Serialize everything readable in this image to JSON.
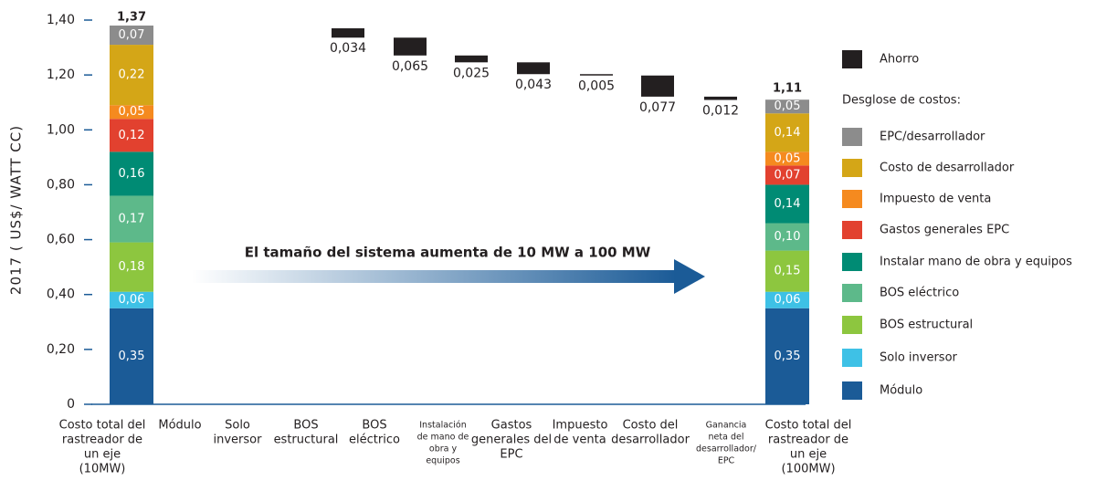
{
  "chart_data": {
    "type": "waterfall",
    "y_label": "2017 ( US$/ WATT CC)",
    "annotation": "El tamaño del sistema aumenta de 10 MW a 100 MW",
    "legend_subtitle": "Desglose de costos:",
    "ylim": [
      0,
      1.4
    ],
    "yticks": [
      0,
      {
        "value": 0.2,
        "label": "0,20"
      },
      {
        "value": 0.4,
        "label": "0,40"
      },
      {
        "value": 0.6,
        "label": "0,60"
      },
      {
        "value": 0.8,
        "label": "0,80"
      },
      {
        "value": 1.0,
        "label": "1,00"
      },
      {
        "value": 1.2,
        "label": "1,20"
      },
      {
        "value": 1.4,
        "label": "1,40"
      }
    ],
    "categories": [
      [
        "Costo total del",
        "rastreador de",
        "un eje",
        "(10MW)"
      ],
      [
        "Módulo"
      ],
      [
        "Solo",
        "inversor"
      ],
      [
        "BOS",
        "estructural"
      ],
      [
        "BOS",
        "eléctrico"
      ],
      [
        "Instalación",
        "de mano de",
        "obra y",
        "equipos"
      ],
      [
        "Gastos",
        "generales del",
        "EPC"
      ],
      [
        "Impuesto",
        "de venta"
      ],
      [
        "Costo del",
        "desarrollador"
      ],
      [
        "Ganancia",
        "neta del",
        "desarrollador/",
        "EPC"
      ],
      [
        "Costo total del",
        "rastreador de",
        "un eje",
        "(100MW)"
      ]
    ],
    "totals": [
      1.37,
      null,
      null,
      null,
      null,
      null,
      null,
      null,
      null,
      null,
      1.11
    ],
    "total_labels": [
      "1,37",
      null,
      null,
      null,
      null,
      null,
      null,
      null,
      null,
      null,
      "1,11"
    ],
    "savings": {
      "name": "Ahorro",
      "color": "#231f20",
      "values": [
        null,
        null,
        null,
        0.034,
        0.065,
        0.025,
        0.043,
        0.005,
        0.077,
        0.012,
        null
      ],
      "value_labels": [
        null,
        null,
        null,
        "0,034",
        "0,065",
        "0,025",
        "0,043",
        "0,005",
        "0,077",
        "0,012",
        null
      ]
    },
    "series": [
      {
        "name": "Módulo",
        "color": "#1b5b97",
        "values": [
          0.35,
          null,
          null,
          null,
          null,
          null,
          null,
          null,
          null,
          null,
          0.35
        ],
        "value_labels": [
          "0,35",
          null,
          null,
          null,
          null,
          null,
          null,
          null,
          null,
          null,
          "0,35"
        ]
      },
      {
        "name": "Solo inversor",
        "color": "#3ec1e6",
        "values": [
          0.06,
          null,
          null,
          null,
          null,
          null,
          null,
          null,
          null,
          null,
          0.06
        ],
        "value_labels": [
          "0,06",
          null,
          null,
          null,
          null,
          null,
          null,
          null,
          null,
          null,
          "0,06"
        ]
      },
      {
        "name": "BOS estructural",
        "color": "#8dc63f",
        "values": [
          0.18,
          null,
          null,
          null,
          null,
          null,
          null,
          null,
          null,
          null,
          0.15
        ],
        "value_labels": [
          "0,18",
          null,
          null,
          null,
          null,
          null,
          null,
          null,
          null,
          null,
          "0,15"
        ]
      },
      {
        "name": "BOS eléctrico",
        "color": "#5db98a",
        "values": [
          0.17,
          null,
          null,
          null,
          null,
          null,
          null,
          null,
          null,
          null,
          0.1
        ],
        "value_labels": [
          "0,17",
          null,
          null,
          null,
          null,
          null,
          null,
          null,
          null,
          null,
          "0,10"
        ]
      },
      {
        "name": "Instalar mano de obra y equipos",
        "color": "#008b74",
        "values": [
          0.16,
          null,
          null,
          null,
          null,
          null,
          null,
          null,
          null,
          null,
          0.14
        ],
        "value_labels": [
          "0,16",
          null,
          null,
          null,
          null,
          null,
          null,
          null,
          null,
          null,
          "0,14"
        ]
      },
      {
        "name": "Gastos generales EPC",
        "color": "#e2412f",
        "values": [
          0.12,
          null,
          null,
          null,
          null,
          null,
          null,
          null,
          null,
          null,
          0.07
        ],
        "value_labels": [
          "0,12",
          null,
          null,
          null,
          null,
          null,
          null,
          null,
          null,
          null,
          "0,07"
        ]
      },
      {
        "name": "Impuesto de venta",
        "color": "#f58a1f",
        "values": [
          0.05,
          null,
          null,
          null,
          null,
          null,
          null,
          null,
          null,
          null,
          0.05
        ],
        "value_labels": [
          "0,05",
          null,
          null,
          null,
          null,
          null,
          null,
          null,
          null,
          null,
          "0,05"
        ]
      },
      {
        "name": "Costo de desarrollador",
        "color": "#d4a617",
        "values": [
          0.22,
          null,
          null,
          null,
          null,
          null,
          null,
          null,
          null,
          null,
          0.14
        ],
        "value_labels": [
          "0,22",
          null,
          null,
          null,
          null,
          null,
          null,
          null,
          null,
          null,
          "0,14"
        ]
      },
      {
        "name": "EPC/desarrollador",
        "color": "#8c8c8c",
        "values": [
          0.07,
          null,
          null,
          null,
          null,
          null,
          null,
          null,
          null,
          null,
          0.05
        ],
        "value_labels": [
          "0,07",
          null,
          null,
          null,
          null,
          null,
          null,
          null,
          null,
          null,
          "0,05"
        ]
      }
    ]
  }
}
